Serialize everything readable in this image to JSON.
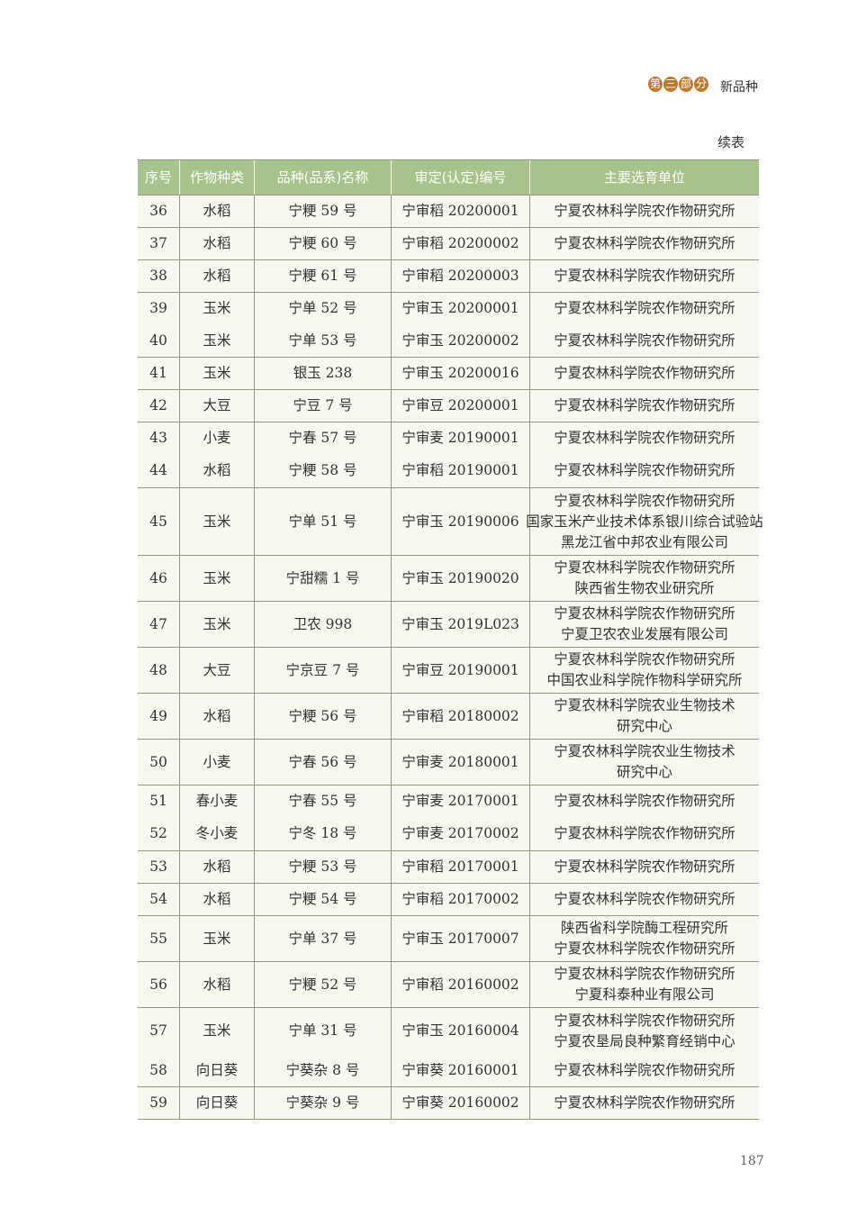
{
  "header": {
    "section_badge": [
      "第",
      "三",
      "部",
      "分"
    ],
    "section_name": "新品种",
    "continued_label": "续表"
  },
  "table": {
    "columns": [
      "序号",
      "作物种类",
      "品种(品系)名称",
      "审定(认定)编号",
      "主要选育单位"
    ],
    "rows": [
      [
        "36",
        "水稻",
        "宁粳 59 号",
        "宁审稻 20200001",
        "宁夏农林科学院农作物研究所"
      ],
      [
        "37",
        "水稻",
        "宁粳 60 号",
        "宁审稻 20200002",
        "宁夏农林科学院农作物研究所"
      ],
      [
        "38",
        "水稻",
        "宁粳 61 号",
        "宁审稻 20200003",
        "宁夏农林科学院农作物研究所"
      ],
      [
        "39",
        "玉米",
        "宁单 52 号",
        "宁审玉 20200001",
        "宁夏农林科学院农作物研究所"
      ],
      [
        "40",
        "玉米",
        "宁单 53 号",
        "宁审玉 20200002",
        "宁夏农林科学院农作物研究所"
      ],
      [
        "41",
        "玉米",
        "银玉 238",
        "宁审玉 20200016",
        "宁夏农林科学院农作物研究所"
      ],
      [
        "42",
        "大豆",
        "宁豆 7 号",
        "宁审豆 20200001",
        "宁夏农林科学院农作物研究所"
      ],
      [
        "43",
        "小麦",
        "宁春 57 号",
        "宁审麦 20190001",
        "宁夏农林科学院农作物研究所"
      ],
      [
        "44",
        "水稻",
        "宁粳 58 号",
        "宁审稻 20190001",
        "宁夏农林科学院农作物研究所"
      ],
      [
        "45",
        "玉米",
        "宁单 51 号",
        "宁审玉 20190006",
        "宁夏农林科学院农作物研究所\n国家玉米产业技术体系银川综合试验站\n黑龙江省中邦农业有限公司"
      ],
      [
        "46",
        "玉米",
        "宁甜糯 1 号",
        "宁审玉 20190020",
        "宁夏农林科学院农作物研究所\n陕西省生物农业研究所"
      ],
      [
        "47",
        "玉米",
        "卫农 998",
        "宁审玉 2019L023",
        "宁夏农林科学院农作物研究所\n宁夏卫农农业发展有限公司"
      ],
      [
        "48",
        "大豆",
        "宁京豆 7 号",
        "宁审豆 20190001",
        "宁夏农林科学院农作物研究所\n中国农业科学院作物科学研究所"
      ],
      [
        "49",
        "水稻",
        "宁粳 56 号",
        "宁审稻 20180002",
        "宁夏农林科学院农业生物技术\n研究中心"
      ],
      [
        "50",
        "小麦",
        "宁春 56 号",
        "宁审麦 20180001",
        "宁夏农林科学院农业生物技术\n研究中心"
      ],
      [
        "51",
        "春小麦",
        "宁春 55 号",
        "宁审麦 20170001",
        "宁夏农林科学院农作物研究所"
      ],
      [
        "52",
        "冬小麦",
        "宁冬 18 号",
        "宁审麦 20170002",
        "宁夏农林科学院农作物研究所"
      ],
      [
        "53",
        "水稻",
        "宁粳 53 号",
        "宁审稻 20170001",
        "宁夏农林科学院农作物研究所"
      ],
      [
        "54",
        "水稻",
        "宁粳 54 号",
        "宁审稻 20170002",
        "宁夏农林科学院农作物研究所"
      ],
      [
        "55",
        "玉米",
        "宁单 37 号",
        "宁审玉 20170007",
        "陕西省科学院酶工程研究所\n宁夏农林科学院农作物研究所"
      ],
      [
        "56",
        "水稻",
        "宁粳 52 号",
        "宁审稻 20160002",
        "宁夏农林科学院农作物研究所\n宁夏科泰种业有限公司"
      ],
      [
        "57",
        "玉米",
        "宁单 31 号",
        "宁审玉 20160004",
        "宁夏农林科学院农作物研究所\n宁夏农垦局良种繁育经销中心"
      ],
      [
        "58",
        "向日葵",
        "宁葵杂 8 号",
        "宁审葵 20160001",
        "宁夏农林科学院农作物研究所"
      ],
      [
        "59",
        "向日葵",
        "宁葵杂 9 号",
        "宁审葵 20160002",
        "宁夏农林科学院农作物研究所"
      ]
    ]
  },
  "colors": {
    "header_bg": "#a9c48a",
    "badge": "#c07a2c"
  },
  "footer": {
    "page_number": "187"
  }
}
